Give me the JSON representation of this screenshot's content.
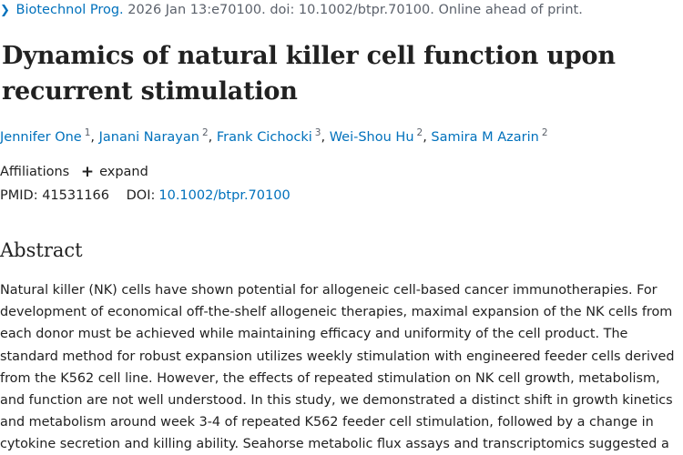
{
  "citation": {
    "journal": "Biotechnol Prog.",
    "details": " 2026 Jan 13:e70100. doi: 10.1002/btpr.70100. Online ahead of print."
  },
  "title": "Dynamics of natural killer cell function upon recurrent stimulation",
  "authors": [
    {
      "name": "Jennifer One",
      "affil": "1"
    },
    {
      "name": "Janani Narayan",
      "affil": "2"
    },
    {
      "name": "Frank Cichocki",
      "affil": "3"
    },
    {
      "name": "Wei-Shou Hu",
      "affil": "2"
    },
    {
      "name": "Samira M Azarin",
      "affil": "2"
    }
  ],
  "affiliations": {
    "label": "Affiliations",
    "expand_label": "expand"
  },
  "ids": {
    "pmid_label": "PMID:",
    "pmid": "41531166",
    "doi_label": "DOI:",
    "doi": "10.1002/btpr.70100"
  },
  "abstract": {
    "heading": "Abstract",
    "text": "Natural killer (NK) cells have shown potential for allogeneic cell-based cancer immunotherapies. For development of economical off-the-shelf allogeneic therapies, maximal expansion of the NK cells from each donor must be achieved while maintaining efficacy and uniformity of the cell product. The standard method for robust expansion utilizes weekly stimulation with engineered feeder cells derived from the K562 cell line. However, the effects of repeated stimulation on NK cell growth, metabolism, and function are not well understood. In this study, we demonstrated a distinct shift in growth kinetics and metabolism around week 3-4 of repeated K562 feeder cell stimulation, followed by a change in cytokine secretion and killing ability. Seahorse metabolic flux assays and transcriptomics suggested a"
  }
}
